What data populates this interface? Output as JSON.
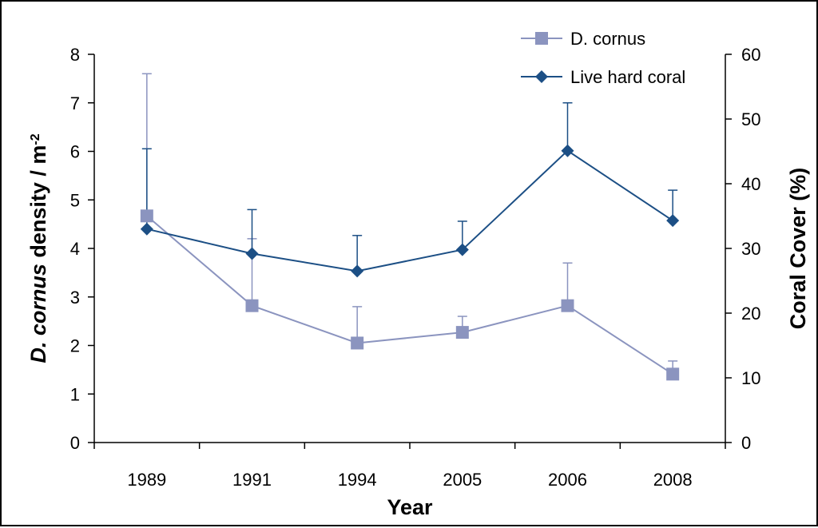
{
  "chart_data": {
    "type": "line",
    "categories": [
      "1989",
      "1991",
      "1994",
      "2005",
      "2006",
      "2008"
    ],
    "xlabel": "Year",
    "ylabel_left": {
      "italic_part": "D. cornus",
      "rest": " density / m",
      "superscript": "-2"
    },
    "ylabel_right": "Coral Cover (%)",
    "ylim_left": [
      0,
      8
    ],
    "yticks_left": [
      0,
      1,
      2,
      3,
      4,
      5,
      6,
      7,
      8
    ],
    "ylim_right": [
      0,
      60
    ],
    "yticks_right": [
      0,
      10,
      20,
      30,
      40,
      50,
      60
    ],
    "grid": false,
    "legend_position": "top-right",
    "series": [
      {
        "name": "D. cornus",
        "axis": "left",
        "marker": "square",
        "color": "#8b94bf",
        "values": [
          4.67,
          2.82,
          2.05,
          2.27,
          2.82,
          1.41
        ],
        "error_upper": [
          7.6,
          4.2,
          2.8,
          2.6,
          3.7,
          1.68
        ]
      },
      {
        "name": "Live hard coral",
        "axis": "right",
        "marker": "diamond",
        "color": "#1c4f85",
        "values": [
          33,
          29.2,
          26.5,
          29.8,
          45.1,
          34.3
        ],
        "error_upper": [
          45.4,
          36,
          32,
          34.2,
          52.5,
          39
        ]
      }
    ]
  }
}
